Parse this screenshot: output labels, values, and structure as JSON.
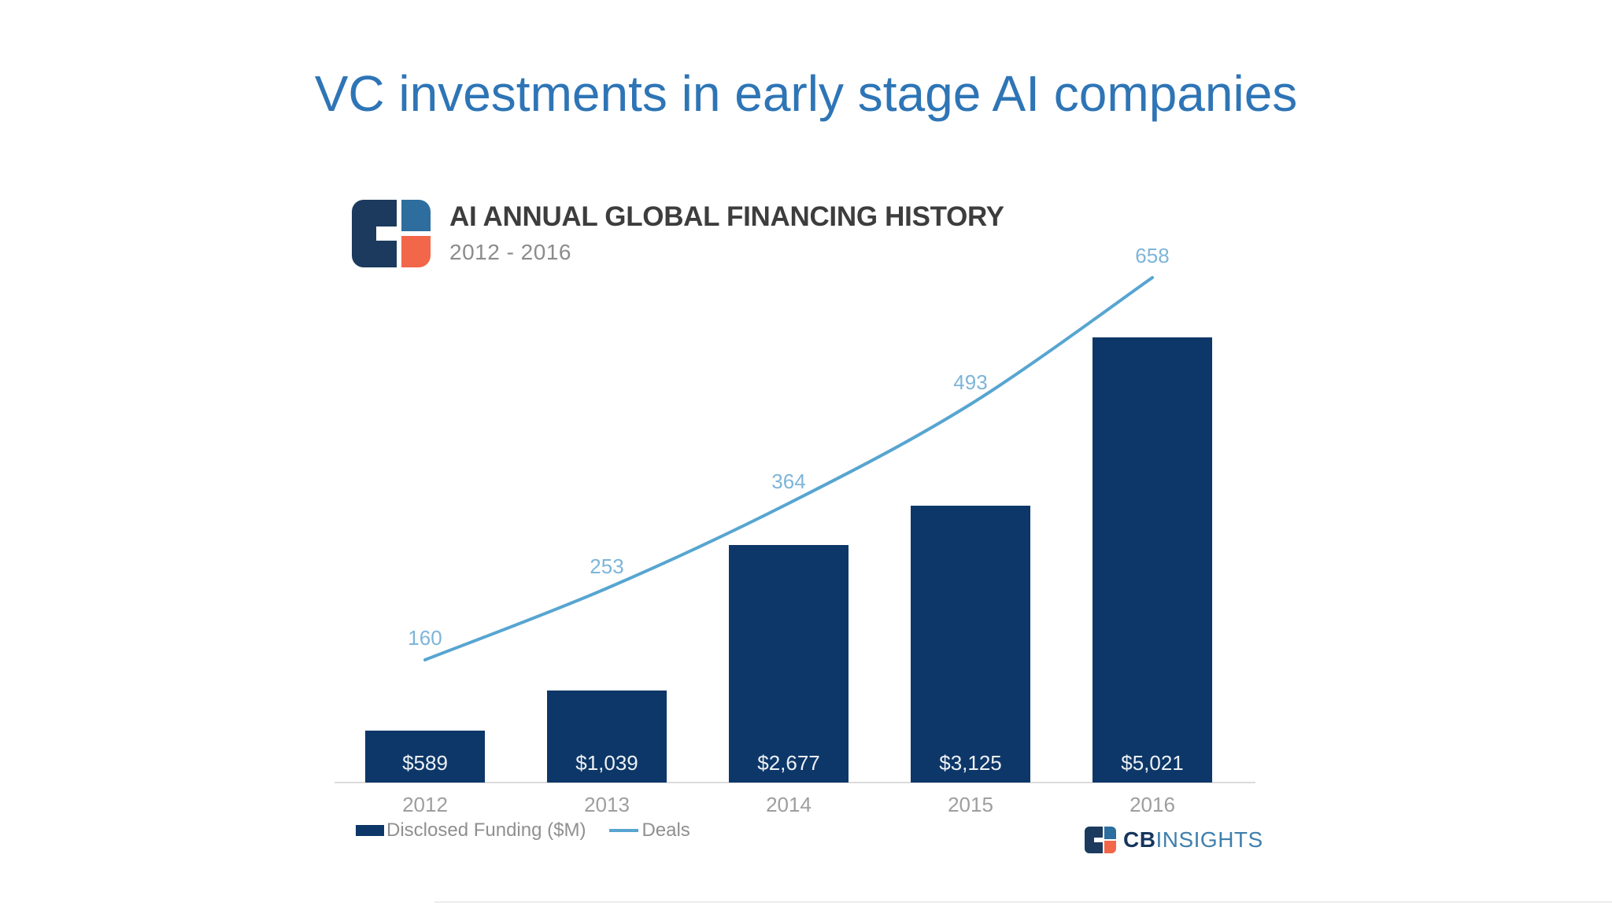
{
  "page": {
    "title": "VC investments in early stage AI companies"
  },
  "chart": {
    "header": {
      "title": "AI ANNUAL GLOBAL FINANCING HISTORY",
      "subtitle": "2012 - 2016"
    },
    "legend": {
      "funding_label": "Disclosed Funding ($M)",
      "deals_label": "Deals"
    },
    "footer_logo": {
      "cb": "CB",
      "insights": "INSIGHTS"
    }
  },
  "chart_data": {
    "type": "bar",
    "combo": "bar + line",
    "title": "AI ANNUAL GLOBAL FINANCING HISTORY",
    "subtitle": "2012 - 2016",
    "categories": [
      "2012",
      "2013",
      "2014",
      "2015",
      "2016"
    ],
    "series": [
      {
        "name": "Disclosed Funding ($M)",
        "type": "bar",
        "values": [
          589,
          1039,
          2677,
          3125,
          5021
        ],
        "value_labels": [
          "$589",
          "$1,039",
          "$2,677",
          "$3,125",
          "$5,021"
        ],
        "color": "#0d3768"
      },
      {
        "name": "Deals",
        "type": "line",
        "values": [
          160,
          253,
          364,
          493,
          658
        ],
        "color": "#57a5d1",
        "label_color": "#7db5d9"
      }
    ],
    "xlabel": "",
    "ylabel": "",
    "value_axis_hidden": true,
    "grid": false,
    "legend_position": "bottom-left"
  },
  "colors": {
    "title_blue": "#2e75b6",
    "bar_navy": "#0d3768",
    "line_blue": "#57a5d1",
    "deal_label_blue": "#7db5d9",
    "logo_navy": "#1b3a5e",
    "logo_blue": "#2d6e9e",
    "logo_orange": "#f2664a",
    "footer_cb_navy": "#15355e",
    "footer_insights_blue": "#3f7fad",
    "header_text": "#3d3d3d",
    "muted_gray": "#8c8c8c",
    "axis_gray": "#9e9e9e"
  }
}
